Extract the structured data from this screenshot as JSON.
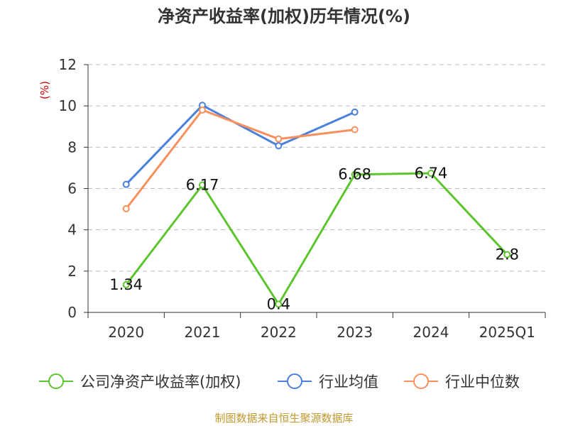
{
  "colors": {
    "series_company": "#5cc52e",
    "series_industry_avg": "#4a7fdc",
    "series_industry_median": "#f7905d",
    "ylabel": "#cc0000",
    "source": "#c0982e",
    "grid": "#bbbbbb",
    "axis": "#333333"
  },
  "chart_data": {
    "type": "line",
    "title": "净资产收益率(加权)历年情况(%)",
    "ylabel": "(%)",
    "xlabel": "",
    "categories": [
      "2020",
      "2021",
      "2022",
      "2023",
      "2024",
      "2025Q1"
    ],
    "ylim": [
      0,
      12
    ],
    "yticks": [
      0,
      2,
      4,
      6,
      8,
      10,
      12
    ],
    "grid": true,
    "legend_position": "bottom",
    "series": [
      {
        "name": "公司净资产收益率(加权)",
        "values": [
          1.34,
          6.17,
          0.4,
          6.68,
          6.74,
          2.8
        ],
        "data_labels": [
          "1.34",
          "6.17",
          "0.4",
          "6.68",
          "6.74",
          "2.8"
        ]
      },
      {
        "name": "行业均值",
        "values": [
          6.2,
          10.03,
          8.07,
          9.7,
          null,
          null
        ]
      },
      {
        "name": "行业中位数",
        "values": [
          5.02,
          9.8,
          8.4,
          8.85,
          null,
          null
        ]
      }
    ]
  },
  "source_text": "制图数据来自恒生聚源数据库"
}
